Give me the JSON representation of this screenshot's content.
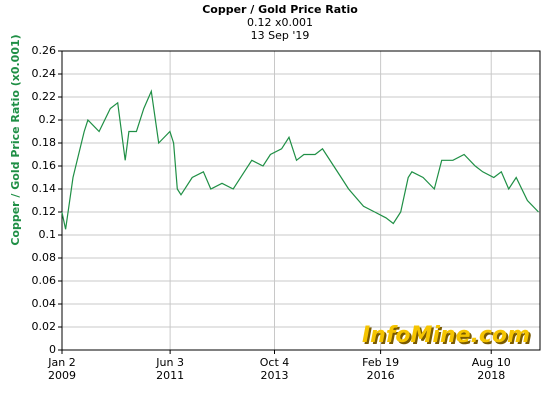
{
  "chart_data": {
    "type": "line",
    "title": "Copper / Gold Price Ratio",
    "subtitle": "0.12 x0.001",
    "date": "13 Sep '19",
    "y_label": "Copper / Gold Price Ratio (x0.001)",
    "watermark": "InfoMine.com",
    "x": [
      "2009-01",
      "2009-02",
      "2009-04",
      "2009-07",
      "2009-08",
      "2009-11",
      "2010-02",
      "2010-04",
      "2010-06",
      "2010-07",
      "2010-09",
      "2010-11",
      "2011-01",
      "2011-03",
      "2011-06",
      "2011-07",
      "2011-08",
      "2011-09",
      "2011-12",
      "2012-03",
      "2012-05",
      "2012-08",
      "2012-11",
      "2013-02",
      "2013-04",
      "2013-07",
      "2013-09",
      "2013-12",
      "2014-02",
      "2014-04",
      "2014-06",
      "2014-09",
      "2014-11",
      "2015-02",
      "2015-04",
      "2015-06",
      "2015-10",
      "2016-01",
      "2016-04",
      "2016-06",
      "2016-08",
      "2016-10",
      "2016-11",
      "2017-02",
      "2017-05",
      "2017-07",
      "2017-10",
      "2018-01",
      "2018-04",
      "2018-06",
      "2018-09",
      "2018-11",
      "2019-01",
      "2019-03",
      "2019-06",
      "2019-09"
    ],
    "series": [
      {
        "name": "Copper / Gold Price Ratio",
        "color": "#1f8f45",
        "values": [
          0.12,
          0.105,
          0.15,
          0.19,
          0.2,
          0.19,
          0.21,
          0.215,
          0.165,
          0.19,
          0.19,
          0.21,
          0.225,
          0.18,
          0.19,
          0.18,
          0.14,
          0.135,
          0.15,
          0.155,
          0.14,
          0.145,
          0.14,
          0.155,
          0.165,
          0.16,
          0.17,
          0.175,
          0.185,
          0.165,
          0.17,
          0.17,
          0.175,
          0.16,
          0.15,
          0.14,
          0.125,
          0.12,
          0.115,
          0.11,
          0.12,
          0.15,
          0.155,
          0.15,
          0.14,
          0.165,
          0.165,
          0.17,
          0.16,
          0.155,
          0.15,
          0.155,
          0.14,
          0.15,
          0.13,
          0.12
        ]
      }
    ],
    "xlim": [
      "2009-01-02",
      "2019-09-13"
    ],
    "xticks": [
      {
        "value": "2009-01-02",
        "label": "Jan 2",
        "year": "2009"
      },
      {
        "value": "2011-06-03",
        "label": "Jun 3",
        "year": "2011"
      },
      {
        "value": "2013-10-04",
        "label": "Oct 4",
        "year": "2013"
      },
      {
        "value": "2016-02-19",
        "label": "Feb 19",
        "year": "2016"
      },
      {
        "value": "2018-08-10",
        "label": "Aug 10",
        "year": "2018"
      }
    ],
    "ylim": [
      0,
      0.26
    ],
    "yticks": [
      0,
      0.02,
      0.04,
      0.06,
      0.08,
      0.1,
      0.12,
      0.14,
      0.16,
      0.18,
      0.2,
      0.22,
      0.24,
      0.26
    ],
    "grid": true
  }
}
